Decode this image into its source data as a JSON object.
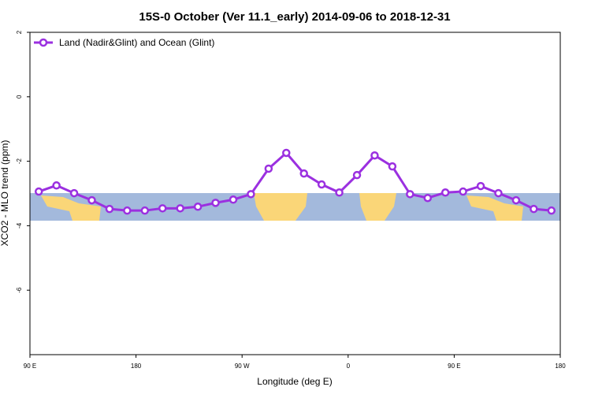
{
  "chart_data": {
    "type": "line",
    "title": "15S-0 October (Ver 11.1_early)   2014-09-06 to 2018-12-31",
    "xlabel": "Longitude (deg E)",
    "ylabel": "XCO2 - MLO trend (ppm)",
    "x": [
      97.5,
      112.5,
      127.5,
      142.5,
      157.5,
      172.5,
      187.5,
      202.5,
      217.5,
      232.5,
      247.5,
      262.5,
      277.5,
      292.5,
      307.5,
      322.5,
      337.5,
      352.5,
      367.5,
      382.5,
      397.5,
      412.5,
      427.5,
      442.5,
      457.5,
      472.5,
      487.5,
      502.5,
      517.5,
      532.5
    ],
    "series": [
      {
        "name": "Land (Nadir&Glint) and Ocean (Glint)",
        "color": "#9b30e0",
        "values": [
          -2.94,
          -2.75,
          -2.99,
          -3.21,
          -3.48,
          -3.53,
          -3.53,
          -3.46,
          -3.46,
          -3.41,
          -3.29,
          -3.19,
          -3.02,
          -2.23,
          -1.74,
          -2.38,
          -2.72,
          -2.97,
          -2.43,
          -1.82,
          -2.16,
          -3.02,
          -3.14,
          -2.97,
          -2.94,
          -2.77,
          -2.99,
          -3.21,
          -3.48,
          -3.53
        ]
      }
    ],
    "xlim": [
      90,
      540
    ],
    "xticks": [
      {
        "value": 90,
        "label": "90 E"
      },
      {
        "value": 180,
        "label": "180"
      },
      {
        "value": 270,
        "label": "90 W"
      },
      {
        "value": 360,
        "label": "0"
      },
      {
        "value": 450,
        "label": "90 E"
      },
      {
        "value": 540,
        "label": "180"
      }
    ],
    "ylim": [
      -8,
      2
    ],
    "yticks": [
      2,
      0,
      -2,
      -4,
      -6
    ],
    "legend": "top-left"
  }
}
